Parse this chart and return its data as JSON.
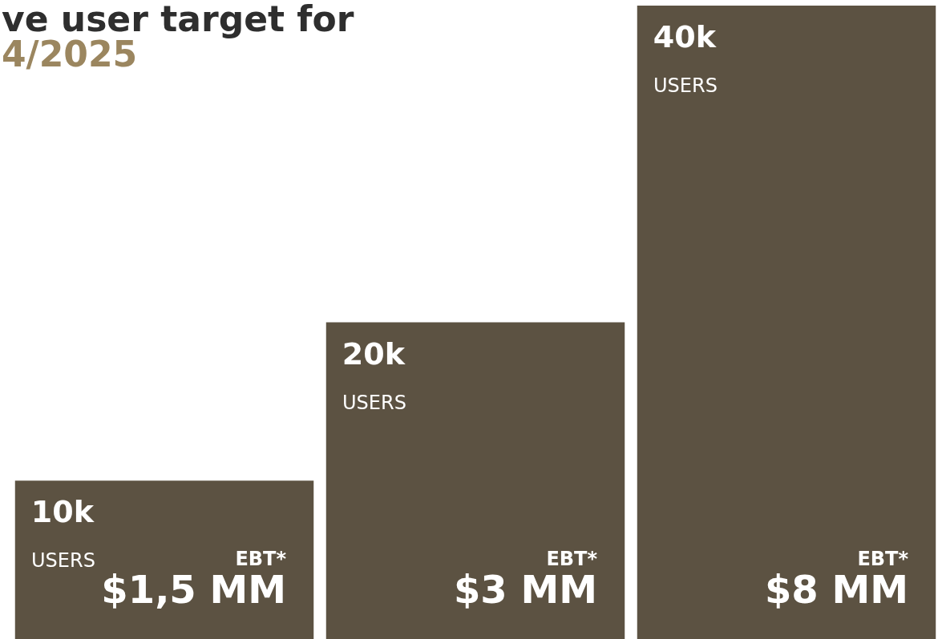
{
  "chart_data": {
    "type": "bar",
    "title": "ve user target for",
    "subtitle": "4/2025",
    "categories": [
      null,
      null,
      null
    ],
    "values": [
      10000,
      20000,
      40000
    ],
    "color": "#5c5242",
    "value_labels": [
      "10k",
      "20k",
      "40k"
    ],
    "annotations": [
      "USERS",
      "USERS",
      "USERS",
      "EBT*",
      "EBT*",
      "EBT*",
      "$1,5 MM",
      "$3 MM",
      "$8 MM"
    ]
  }
}
